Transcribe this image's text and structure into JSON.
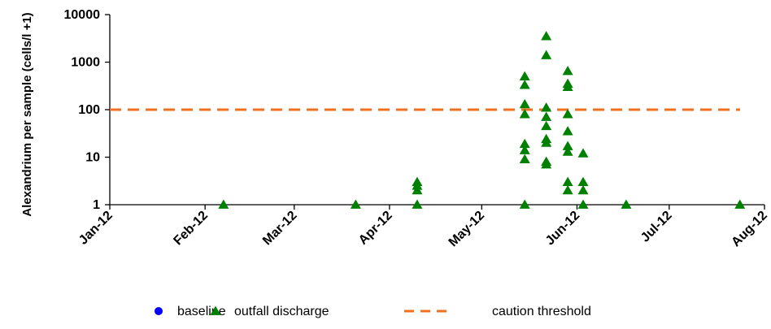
{
  "chart_data": {
    "type": "scatter",
    "ylabel": "Alexandrium per sample (cells/l +1)",
    "y_scale": "log",
    "ylim": [
      1,
      10000
    ],
    "y_ticks": [
      {
        "value": 1,
        "label": "1"
      },
      {
        "value": 10,
        "label": "10"
      },
      {
        "value": 100,
        "label": "100"
      },
      {
        "value": 1000,
        "label": "1000"
      },
      {
        "value": 10000,
        "label": "10000"
      }
    ],
    "xlim": [
      "2012-01-01",
      "2012-08-01"
    ],
    "x_ticks": [
      {
        "value": "2012-01-01",
        "label": "Jan-12"
      },
      {
        "value": "2012-02-01",
        "label": "Feb-12"
      },
      {
        "value": "2012-03-01",
        "label": "Mar-12"
      },
      {
        "value": "2012-04-01",
        "label": "Apr-12"
      },
      {
        "value": "2012-05-01",
        "label": "May-12"
      },
      {
        "value": "2012-06-01",
        "label": "Jun-12"
      },
      {
        "value": "2012-07-01",
        "label": "Jul-12"
      },
      {
        "value": "2012-08-01",
        "label": "Aug-12"
      }
    ],
    "grid": false,
    "legend_position": "bottom",
    "series": [
      {
        "name": "baseline",
        "marker": "circle",
        "color": "#0000FF",
        "points": []
      },
      {
        "name": "outfall discharge",
        "marker": "triangle",
        "color": "#008000",
        "points": [
          {
            "x": "2012-02-07",
            "y": 1
          },
          {
            "x": "2012-03-21",
            "y": 1
          },
          {
            "x": "2012-04-10",
            "y": 1
          },
          {
            "x": "2012-04-10",
            "y": 2
          },
          {
            "x": "2012-04-10",
            "y": 2.5
          },
          {
            "x": "2012-04-10",
            "y": 3
          },
          {
            "x": "2012-05-15",
            "y": 1
          },
          {
            "x": "2012-05-15",
            "y": 9
          },
          {
            "x": "2012-05-15",
            "y": 14
          },
          {
            "x": "2012-05-15",
            "y": 19
          },
          {
            "x": "2012-05-15",
            "y": 80
          },
          {
            "x": "2012-05-15",
            "y": 130
          },
          {
            "x": "2012-05-15",
            "y": 330
          },
          {
            "x": "2012-05-15",
            "y": 500
          },
          {
            "x": "2012-05-22",
            "y": 7
          },
          {
            "x": "2012-05-22",
            "y": 8
          },
          {
            "x": "2012-05-22",
            "y": 20
          },
          {
            "x": "2012-05-22",
            "y": 24
          },
          {
            "x": "2012-05-22",
            "y": 45
          },
          {
            "x": "2012-05-22",
            "y": 70
          },
          {
            "x": "2012-05-22",
            "y": 110
          },
          {
            "x": "2012-05-22",
            "y": 1400
          },
          {
            "x": "2012-05-22",
            "y": 3500
          },
          {
            "x": "2012-05-29",
            "y": 2
          },
          {
            "x": "2012-05-29",
            "y": 3
          },
          {
            "x": "2012-05-29",
            "y": 13
          },
          {
            "x": "2012-05-29",
            "y": 17
          },
          {
            "x": "2012-05-29",
            "y": 35
          },
          {
            "x": "2012-05-29",
            "y": 80
          },
          {
            "x": "2012-05-29",
            "y": 300
          },
          {
            "x": "2012-05-29",
            "y": 350
          },
          {
            "x": "2012-05-29",
            "y": 650
          },
          {
            "x": "2012-06-03",
            "y": 1
          },
          {
            "x": "2012-06-03",
            "y": 2
          },
          {
            "x": "2012-06-03",
            "y": 3
          },
          {
            "x": "2012-06-03",
            "y": 12
          },
          {
            "x": "2012-06-17",
            "y": 1
          },
          {
            "x": "2012-07-24",
            "y": 1
          }
        ]
      },
      {
        "name": "caution threshold",
        "style": "dashed-line",
        "color": "#F07020",
        "y_value": 100
      }
    ]
  }
}
